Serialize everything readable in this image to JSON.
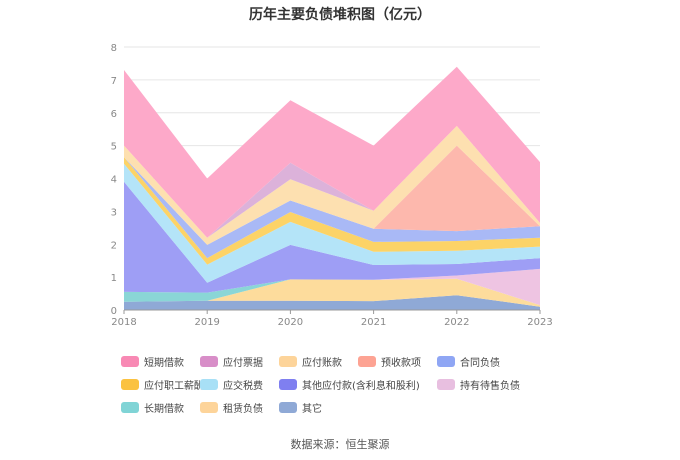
{
  "chart_data": {
    "type": "area",
    "stacked": true,
    "title": "历年主要负债堆积图（亿元）",
    "x": [
      "2018",
      "2019",
      "2020",
      "2021",
      "2022",
      "2023"
    ],
    "ylim": [
      0,
      8
    ],
    "yticks": [
      "0",
      "1",
      "2",
      "3",
      "4",
      "5",
      "6",
      "7",
      "8"
    ],
    "grid": true,
    "legend_position": "bottom",
    "series": [
      {
        "name": "其它",
        "color": "#8fa9d6",
        "values": [
          0.25,
          0.28,
          0.28,
          0.27,
          0.45,
          0.1
        ]
      },
      {
        "name": "租赁负债",
        "color": "#fddc9c",
        "values": [
          0.0,
          0.0,
          0.65,
          0.65,
          0.5,
          0.05
        ]
      },
      {
        "name": "长期借款",
        "color": "#8ad6d6",
        "values": [
          0.3,
          0.25,
          0.0,
          0.0,
          0.0,
          0.0
        ]
      },
      {
        "name": "持有待售负债",
        "color": "#eec4e2",
        "values": [
          0.0,
          0.0,
          0.0,
          0.0,
          0.1,
          1.1
        ]
      },
      {
        "name": "其他应付款(含利息和股利)",
        "color": "#9e9ef5",
        "values": [
          3.35,
          0.3,
          1.05,
          0.45,
          0.35,
          0.33
        ]
      },
      {
        "name": "应交税费",
        "color": "#b4e4f8",
        "values": [
          0.55,
          0.55,
          0.7,
          0.4,
          0.4,
          0.35
        ]
      },
      {
        "name": "应付职工薪酬",
        "color": "#fcd367",
        "values": [
          0.2,
          0.2,
          0.3,
          0.3,
          0.3,
          0.27
        ]
      },
      {
        "name": "合同负债",
        "color": "#a9b9f6",
        "values": [
          0.0,
          0.4,
          0.35,
          0.4,
          0.3,
          0.35
        ]
      },
      {
        "name": "预收款项",
        "color": "#fdb8ad",
        "values": [
          0.0,
          0.0,
          0.0,
          0.0,
          2.6,
          0.0
        ]
      },
      {
        "name": "应付账款",
        "color": "#fde0b0",
        "values": [
          0.35,
          0.22,
          0.65,
          0.55,
          0.6,
          0.1
        ]
      },
      {
        "name": "应付票据",
        "color": "#dcb2da",
        "values": [
          0.0,
          0.0,
          0.5,
          0.0,
          0.0,
          0.0
        ]
      },
      {
        "name": "短期借款",
        "color": "#fda9c9",
        "values": [
          2.3,
          1.8,
          1.9,
          1.98,
          1.8,
          1.85
        ]
      }
    ]
  },
  "legend": [
    {
      "label": "短期借款",
      "color": "#f889b4"
    },
    {
      "label": "应付票据",
      "color": "#d88ec8"
    },
    {
      "label": "应付账款",
      "color": "#fdd49a"
    },
    {
      "label": "预收款项",
      "color": "#fda393"
    },
    {
      "label": "合同负债",
      "color": "#8fa6f4"
    },
    {
      "label": "应付职工薪酬",
      "color": "#fbc240"
    },
    {
      "label": "应交税费",
      "color": "#a8e0f6"
    },
    {
      "label": "其他应付款(含利息和股利)",
      "color": "#7f7ff0"
    },
    {
      "label": "持有待售负债",
      "color": "#e8bfe0"
    },
    {
      "label": "长期借款",
      "color": "#80d4d6"
    },
    {
      "label": "租赁负债",
      "color": "#fdd49a"
    },
    {
      "label": "其它",
      "color": "#8fa9d6"
    }
  ],
  "source": "数据来源：恒生聚源"
}
